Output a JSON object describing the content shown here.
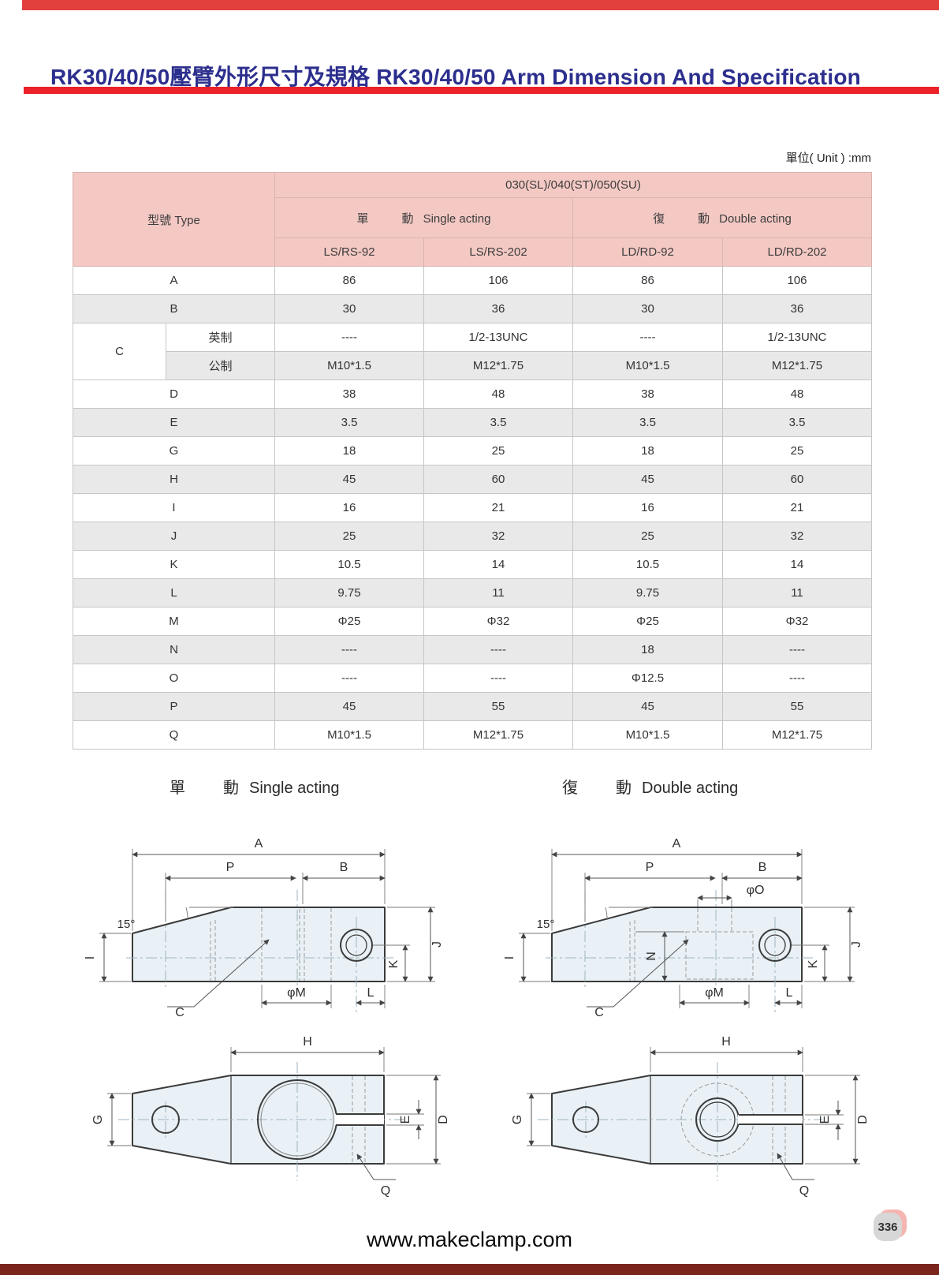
{
  "page": {
    "title": "RK30/40/50壓臂外形尺寸及規格 RK30/40/50 Arm Dimension And Specification",
    "unit_label": "單位( Unit ) :mm",
    "footer_url": "www.makeclamp.com",
    "page_number": "336"
  },
  "sections": {
    "single": {
      "cn1": "單",
      "cn2": "動",
      "en": "Single acting"
    },
    "double": {
      "cn1": "復",
      "cn2": "動",
      "en": "Double acting"
    }
  },
  "table": {
    "type_header": "型號 Type",
    "group_header": "030(SL)/040(ST)/050(SU)",
    "columns": [
      "LS/RS-92",
      "LS/RS-202",
      "LD/RD-92",
      "LD/RD-202"
    ],
    "rows": [
      {
        "label": "A",
        "values": [
          "86",
          "106",
          "86",
          "106"
        ],
        "shaded": false
      },
      {
        "label": "B",
        "values": [
          "30",
          "36",
          "30",
          "36"
        ],
        "shaded": true
      },
      {
        "label": "C",
        "sub": "英制",
        "values": [
          "----",
          "1/2-13UNC",
          "----",
          "1/2-13UNC"
        ],
        "shaded": false
      },
      {
        "label": "",
        "sub": "公制",
        "values": [
          "M10*1.5",
          "M12*1.75",
          "M10*1.5",
          "M12*1.75"
        ],
        "shaded": true
      },
      {
        "label": "D",
        "values": [
          "38",
          "48",
          "38",
          "48"
        ],
        "shaded": false
      },
      {
        "label": "E",
        "values": [
          "3.5",
          "3.5",
          "3.5",
          "3.5"
        ],
        "shaded": true
      },
      {
        "label": "G",
        "values": [
          "18",
          "25",
          "18",
          "25"
        ],
        "shaded": false
      },
      {
        "label": "H",
        "values": [
          "45",
          "60",
          "45",
          "60"
        ],
        "shaded": true
      },
      {
        "label": "I",
        "values": [
          "16",
          "21",
          "16",
          "21"
        ],
        "shaded": false
      },
      {
        "label": "J",
        "values": [
          "25",
          "32",
          "25",
          "32"
        ],
        "shaded": true
      },
      {
        "label": "K",
        "values": [
          "10.5",
          "14",
          "10.5",
          "14"
        ],
        "shaded": false
      },
      {
        "label": "L",
        "values": [
          "9.75",
          "11",
          "9.75",
          "11"
        ],
        "shaded": true
      },
      {
        "label": "M",
        "values": [
          "Φ25",
          "Φ32",
          "Φ25",
          "Φ32"
        ],
        "shaded": false
      },
      {
        "label": "N",
        "values": [
          "----",
          "----",
          "18",
          "----"
        ],
        "shaded": true
      },
      {
        "label": "O",
        "values": [
          "----",
          "----",
          "Φ12.5",
          "----"
        ],
        "shaded": false
      },
      {
        "label": "P",
        "values": [
          "45",
          "55",
          "45",
          "55"
        ],
        "shaded": true
      },
      {
        "label": "Q",
        "values": [
          "M10*1.5",
          "M12*1.75",
          "M10*1.5",
          "M12*1.75"
        ],
        "shaded": false
      }
    ]
  },
  "drawings": {
    "dims": {
      "a": "A",
      "p": "P",
      "b": "B",
      "angle": "15°",
      "i": "I",
      "j": "J",
      "k": "K",
      "c": "C",
      "phi_m": "φM",
      "l": "L",
      "h": "H",
      "g": "G",
      "d": "D",
      "e": "E",
      "q": "Q",
      "n": "N",
      "phi_o": "φO"
    }
  }
}
